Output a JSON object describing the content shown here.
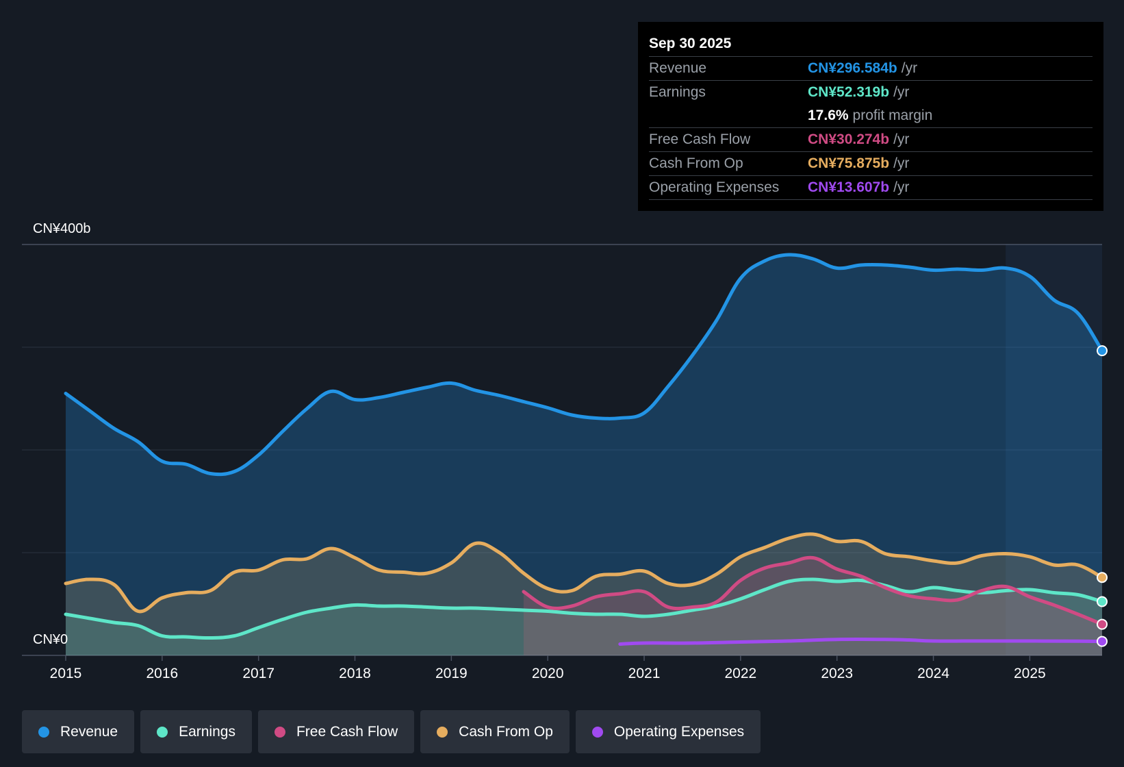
{
  "chart_data": {
    "type": "line",
    "title": "",
    "y_axis": {
      "top_label": "CN¥400b",
      "bottom_label": "CN¥0",
      "ylim": [
        0,
        400
      ],
      "unit": "CN¥b",
      "gridlines": [
        0,
        100,
        200,
        300,
        400
      ]
    },
    "x_axis": {
      "tick_labels": [
        "2015",
        "2016",
        "2017",
        "2018",
        "2019",
        "2020",
        "2021",
        "2022",
        "2023",
        "2024",
        "2025"
      ],
      "range": [
        2015.0,
        2025.75
      ]
    },
    "highlight_start": 2024.75,
    "series": [
      {
        "name": "Revenue",
        "color": "#2394e5",
        "fill": true,
        "points": [
          [
            2015.0,
            255
          ],
          [
            2015.25,
            238
          ],
          [
            2015.5,
            221
          ],
          [
            2015.75,
            208
          ],
          [
            2016.0,
            189
          ],
          [
            2016.25,
            186
          ],
          [
            2016.5,
            177
          ],
          [
            2016.75,
            179
          ],
          [
            2017.0,
            195
          ],
          [
            2017.25,
            218
          ],
          [
            2017.5,
            240
          ],
          [
            2017.75,
            257
          ],
          [
            2018.0,
            249
          ],
          [
            2018.25,
            251
          ],
          [
            2018.5,
            256
          ],
          [
            2018.75,
            261
          ],
          [
            2019.0,
            265
          ],
          [
            2019.25,
            258
          ],
          [
            2019.5,
            253
          ],
          [
            2019.75,
            247
          ],
          [
            2020.0,
            241
          ],
          [
            2020.25,
            234
          ],
          [
            2020.5,
            231
          ],
          [
            2020.75,
            231
          ],
          [
            2021.0,
            236
          ],
          [
            2021.25,
            262
          ],
          [
            2021.5,
            292
          ],
          [
            2021.75,
            326
          ],
          [
            2022.0,
            367
          ],
          [
            2022.25,
            384
          ],
          [
            2022.5,
            390
          ],
          [
            2022.75,
            386
          ],
          [
            2023.0,
            377
          ],
          [
            2023.25,
            380
          ],
          [
            2023.5,
            380
          ],
          [
            2023.75,
            378
          ],
          [
            2024.0,
            375
          ],
          [
            2024.25,
            376
          ],
          [
            2024.5,
            375
          ],
          [
            2024.75,
            377
          ],
          [
            2025.0,
            369
          ],
          [
            2025.25,
            346
          ],
          [
            2025.5,
            333
          ],
          [
            2025.75,
            296.584
          ]
        ]
      },
      {
        "name": "Earnings",
        "color": "#5ee6c8",
        "fill": true,
        "points": [
          [
            2015.0,
            40
          ],
          [
            2015.25,
            36
          ],
          [
            2015.5,
            32
          ],
          [
            2015.75,
            29
          ],
          [
            2016.0,
            19
          ],
          [
            2016.25,
            18
          ],
          [
            2016.5,
            17
          ],
          [
            2016.75,
            19
          ],
          [
            2017.0,
            27
          ],
          [
            2017.25,
            35
          ],
          [
            2017.5,
            42
          ],
          [
            2017.75,
            46
          ],
          [
            2018.0,
            49
          ],
          [
            2018.25,
            48
          ],
          [
            2018.5,
            48
          ],
          [
            2018.75,
            47
          ],
          [
            2019.0,
            46
          ],
          [
            2019.25,
            46
          ],
          [
            2019.5,
            45
          ],
          [
            2019.75,
            44
          ],
          [
            2020.0,
            43
          ],
          [
            2020.25,
            41
          ],
          [
            2020.5,
            40
          ],
          [
            2020.75,
            40
          ],
          [
            2021.0,
            38
          ],
          [
            2021.25,
            40
          ],
          [
            2021.5,
            44
          ],
          [
            2021.75,
            48
          ],
          [
            2022.0,
            55
          ],
          [
            2022.25,
            64
          ],
          [
            2022.5,
            72
          ],
          [
            2022.75,
            74
          ],
          [
            2023.0,
            72
          ],
          [
            2023.25,
            73
          ],
          [
            2023.5,
            68
          ],
          [
            2023.75,
            62
          ],
          [
            2024.0,
            66
          ],
          [
            2024.25,
            63
          ],
          [
            2024.5,
            61
          ],
          [
            2024.75,
            63
          ],
          [
            2025.0,
            64
          ],
          [
            2025.25,
            61
          ],
          [
            2025.5,
            59
          ],
          [
            2025.75,
            52.319
          ]
        ]
      },
      {
        "name": "Free Cash Flow",
        "color": "#d04b84",
        "fill": true,
        "points": [
          [
            2019.75,
            62
          ],
          [
            2020.0,
            47
          ],
          [
            2020.25,
            48
          ],
          [
            2020.5,
            57
          ],
          [
            2020.75,
            60
          ],
          [
            2021.0,
            62
          ],
          [
            2021.25,
            47
          ],
          [
            2021.5,
            47
          ],
          [
            2021.75,
            52
          ],
          [
            2022.0,
            73
          ],
          [
            2022.25,
            85
          ],
          [
            2022.5,
            90
          ],
          [
            2022.75,
            95
          ],
          [
            2023.0,
            84
          ],
          [
            2023.25,
            77
          ],
          [
            2023.5,
            66
          ],
          [
            2023.75,
            58
          ],
          [
            2024.0,
            55
          ],
          [
            2024.25,
            54
          ],
          [
            2024.5,
            63
          ],
          [
            2024.75,
            67
          ],
          [
            2025.0,
            57
          ],
          [
            2025.25,
            49
          ],
          [
            2025.5,
            40
          ],
          [
            2025.75,
            30.274
          ]
        ]
      },
      {
        "name": "Cash From Op",
        "color": "#e6ad5f",
        "fill": true,
        "points": [
          [
            2015.0,
            70
          ],
          [
            2015.25,
            74
          ],
          [
            2015.5,
            69
          ],
          [
            2015.75,
            43
          ],
          [
            2016.0,
            56
          ],
          [
            2016.25,
            61
          ],
          [
            2016.5,
            63
          ],
          [
            2016.75,
            81
          ],
          [
            2017.0,
            83
          ],
          [
            2017.25,
            93
          ],
          [
            2017.5,
            94
          ],
          [
            2017.75,
            104
          ],
          [
            2018.0,
            95
          ],
          [
            2018.25,
            83
          ],
          [
            2018.5,
            81
          ],
          [
            2018.75,
            80
          ],
          [
            2019.0,
            90
          ],
          [
            2019.25,
            109
          ],
          [
            2019.5,
            100
          ],
          [
            2019.75,
            80
          ],
          [
            2020.0,
            65
          ],
          [
            2020.25,
            63
          ],
          [
            2020.5,
            77
          ],
          [
            2020.75,
            79
          ],
          [
            2021.0,
            82
          ],
          [
            2021.25,
            70
          ],
          [
            2021.5,
            69
          ],
          [
            2021.75,
            79
          ],
          [
            2022.0,
            96
          ],
          [
            2022.25,
            105
          ],
          [
            2022.5,
            114
          ],
          [
            2022.75,
            118
          ],
          [
            2023.0,
            111
          ],
          [
            2023.25,
            111
          ],
          [
            2023.5,
            99
          ],
          [
            2023.75,
            96
          ],
          [
            2024.0,
            92
          ],
          [
            2024.25,
            90
          ],
          [
            2024.5,
            97
          ],
          [
            2024.75,
            99
          ],
          [
            2025.0,
            96
          ],
          [
            2025.25,
            88
          ],
          [
            2025.5,
            88
          ],
          [
            2025.75,
            75.875
          ]
        ]
      },
      {
        "name": "Operating Expenses",
        "color": "#a04af0",
        "fill": false,
        "points": [
          [
            2020.75,
            11
          ],
          [
            2021.0,
            12
          ],
          [
            2021.5,
            12
          ],
          [
            2022.0,
            13
          ],
          [
            2022.5,
            14
          ],
          [
            2023.0,
            15.5
          ],
          [
            2023.5,
            15.5
          ],
          [
            2023.75,
            15
          ],
          [
            2024.0,
            14
          ],
          [
            2024.5,
            14
          ],
          [
            2025.0,
            14
          ],
          [
            2025.5,
            13.8
          ],
          [
            2025.75,
            13.607
          ]
        ]
      }
    ]
  },
  "tooltip": {
    "date": "Sep 30 2025",
    "rows": [
      {
        "label": "Revenue",
        "value": "CN¥296.584b",
        "unit": "/yr",
        "color": "#2394e5"
      },
      {
        "label": "Earnings",
        "value": "CN¥52.319b",
        "unit": "/yr",
        "color": "#5ee6c8"
      },
      {
        "label": "",
        "value": "17.6%",
        "unit": "profit margin",
        "color": "#ffffff"
      },
      {
        "label": "Free Cash Flow",
        "value": "CN¥30.274b",
        "unit": "/yr",
        "color": "#d04b84"
      },
      {
        "label": "Cash From Op",
        "value": "CN¥75.875b",
        "unit": "/yr",
        "color": "#e6ad5f"
      },
      {
        "label": "Operating Expenses",
        "value": "CN¥13.607b",
        "unit": "/yr",
        "color": "#a04af0"
      }
    ]
  },
  "legend": [
    {
      "label": "Revenue",
      "color": "#2394e5"
    },
    {
      "label": "Earnings",
      "color": "#5ee6c8"
    },
    {
      "label": "Free Cash Flow",
      "color": "#d04b84"
    },
    {
      "label": "Cash From Op",
      "color": "#e6ad5f"
    },
    {
      "label": "Operating Expenses",
      "color": "#a04af0"
    }
  ]
}
